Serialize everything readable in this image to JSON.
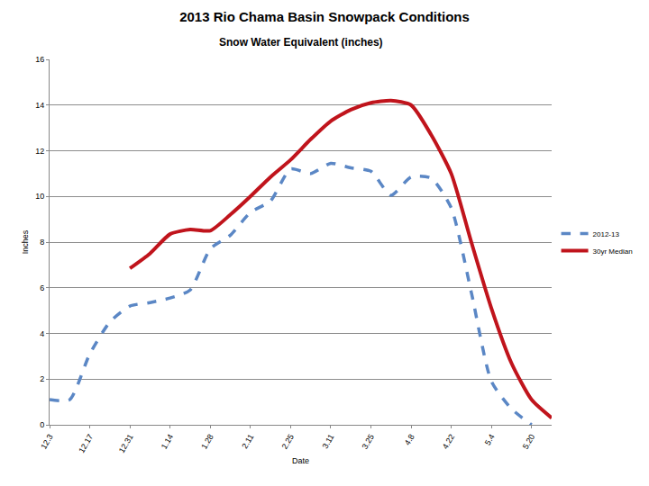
{
  "chart_data": {
    "type": "line",
    "title": "2013 Rio Chama Basin Snowpack Conditions",
    "subtitle": "Snow Water Equivalent (inches)",
    "x_label": "Date",
    "y_label": "Inches",
    "categories": [
      "12.3",
      null,
      "12.17",
      null,
      "12.31",
      null,
      "1.14",
      null,
      "1.28",
      null,
      "2.11",
      null,
      "2.25",
      null,
      "3.11",
      null,
      "3.25",
      null,
      "4.8",
      null,
      "4.22",
      null,
      "5.4",
      null,
      "5.20",
      null
    ],
    "series": [
      {
        "name": "2012-13",
        "color": "#5b87c5",
        "line_style": "dashed",
        "values": [
          1.1,
          1.1,
          3.1,
          4.5,
          5.2,
          5.35,
          5.55,
          5.9,
          7.7,
          8.3,
          9.3,
          9.8,
          11.2,
          11.0,
          11.45,
          11.25,
          11.1,
          10.05,
          10.85,
          10.8,
          9.5,
          5.8,
          1.9,
          0.7,
          0.0,
          null
        ]
      },
      {
        "name": "30yr Median",
        "color": "#c0141c",
        "line_style": "solid",
        "values": [
          null,
          null,
          null,
          null,
          6.85,
          7.5,
          8.35,
          8.55,
          8.5,
          9.2,
          10.0,
          10.85,
          11.6,
          12.5,
          13.3,
          13.8,
          14.1,
          14.2,
          14.0,
          12.7,
          11.0,
          8.0,
          5.1,
          2.7,
          1.1,
          0.3
        ]
      }
    ],
    "ylim": [
      0,
      16
    ],
    "yticks": [
      0,
      2,
      4,
      6,
      8,
      10,
      12,
      14,
      16
    ],
    "grid": true,
    "legend": "right"
  }
}
